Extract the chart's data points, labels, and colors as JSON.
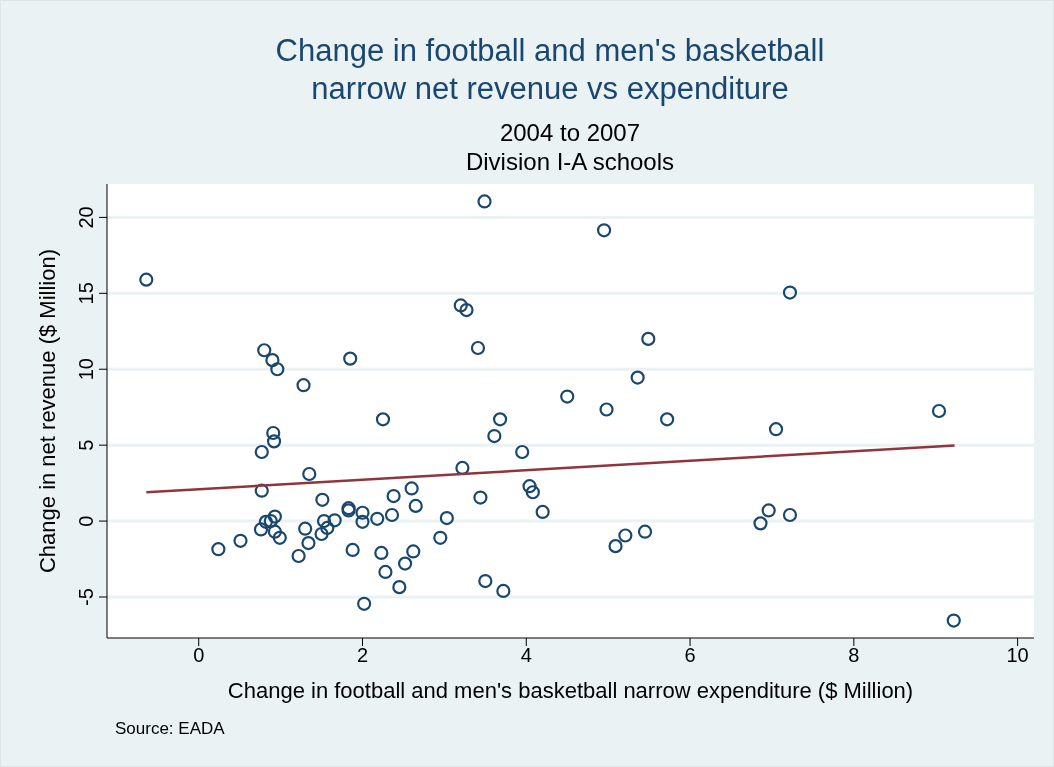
{
  "chart_data": {
    "type": "scatter",
    "title": "Change in football and men's basketball\nnarrow net revenue vs expenditure",
    "subtitle": "2004 to 2007\nDivision I-A schools",
    "xlabel": "Change in football and men's basketball narrow expenditure ($ Million)",
    "ylabel": "Change in net revenue ($ Million)",
    "annotations": [
      "Source: EADA"
    ],
    "xlim": [
      -1.12,
      10.2
    ],
    "ylim": [
      -7.7,
      22.2
    ],
    "xticks": [
      0,
      2,
      4,
      6,
      8,
      10
    ],
    "yticks": [
      -5,
      0,
      5,
      10,
      15,
      20
    ],
    "grid": "y",
    "legend": false,
    "series": [
      {
        "color": "#1a476f",
        "marker": "circle",
        "x": [
          -0.64,
          0.8,
          0.9,
          0.96,
          1.28,
          1.85,
          2.25,
          0.91,
          0.92,
          0.77,
          1.35,
          0.77,
          1.51,
          1.83,
          1.83,
          2.0,
          2.0,
          2.18,
          2.36,
          2.38,
          2.6,
          2.65,
          0.93,
          0.88,
          0.82,
          0.76,
          0.93,
          0.99,
          1.53,
          1.66,
          1.57,
          1.5,
          1.3,
          1.34,
          1.22,
          0.51,
          0.24,
          1.88,
          2.23,
          2.62,
          2.52,
          2.28,
          2.45,
          2.02,
          3.49,
          4.95,
          3.2,
          3.27,
          3.41,
          5.49,
          5.36,
          4.5,
          4.98,
          5.72,
          3.68,
          3.61,
          3.95,
          3.22,
          3.44,
          4.04,
          4.08,
          4.2,
          3.03,
          2.95,
          3.5,
          3.72,
          5.09,
          5.21,
          5.45,
          7.22,
          7.05,
          9.04,
          6.96,
          6.86,
          7.22,
          9.22
        ],
        "values": [
          15.9,
          11.25,
          10.6,
          10.0,
          8.95,
          10.7,
          6.7,
          5.8,
          5.25,
          4.55,
          3.1,
          2.0,
          1.4,
          0.85,
          0.7,
          0.55,
          -0.05,
          0.15,
          0.4,
          1.65,
          2.15,
          1.0,
          0.3,
          0.0,
          -0.05,
          -0.55,
          -0.7,
          -1.1,
          0.0,
          0.05,
          -0.45,
          -0.85,
          -0.5,
          -1.45,
          -2.3,
          -1.3,
          -1.85,
          -1.9,
          -2.1,
          -2.0,
          -2.8,
          -3.35,
          -4.35,
          -5.45,
          21.05,
          19.15,
          14.2,
          13.9,
          11.4,
          12.0,
          9.45,
          8.2,
          7.35,
          6.7,
          6.7,
          5.6,
          4.55,
          3.5,
          1.55,
          2.3,
          1.9,
          0.6,
          0.2,
          -1.1,
          -3.95,
          -4.6,
          -1.65,
          -0.95,
          -0.7,
          15.05,
          6.05,
          7.25,
          0.7,
          -0.15,
          0.4,
          -6.55
        ]
      },
      {
        "type": "line",
        "color": "#90353b",
        "marker": "none",
        "line_style": "solid",
        "x": [
          -0.64,
          9.23
        ],
        "values": [
          1.9,
          4.98
        ]
      }
    ]
  }
}
